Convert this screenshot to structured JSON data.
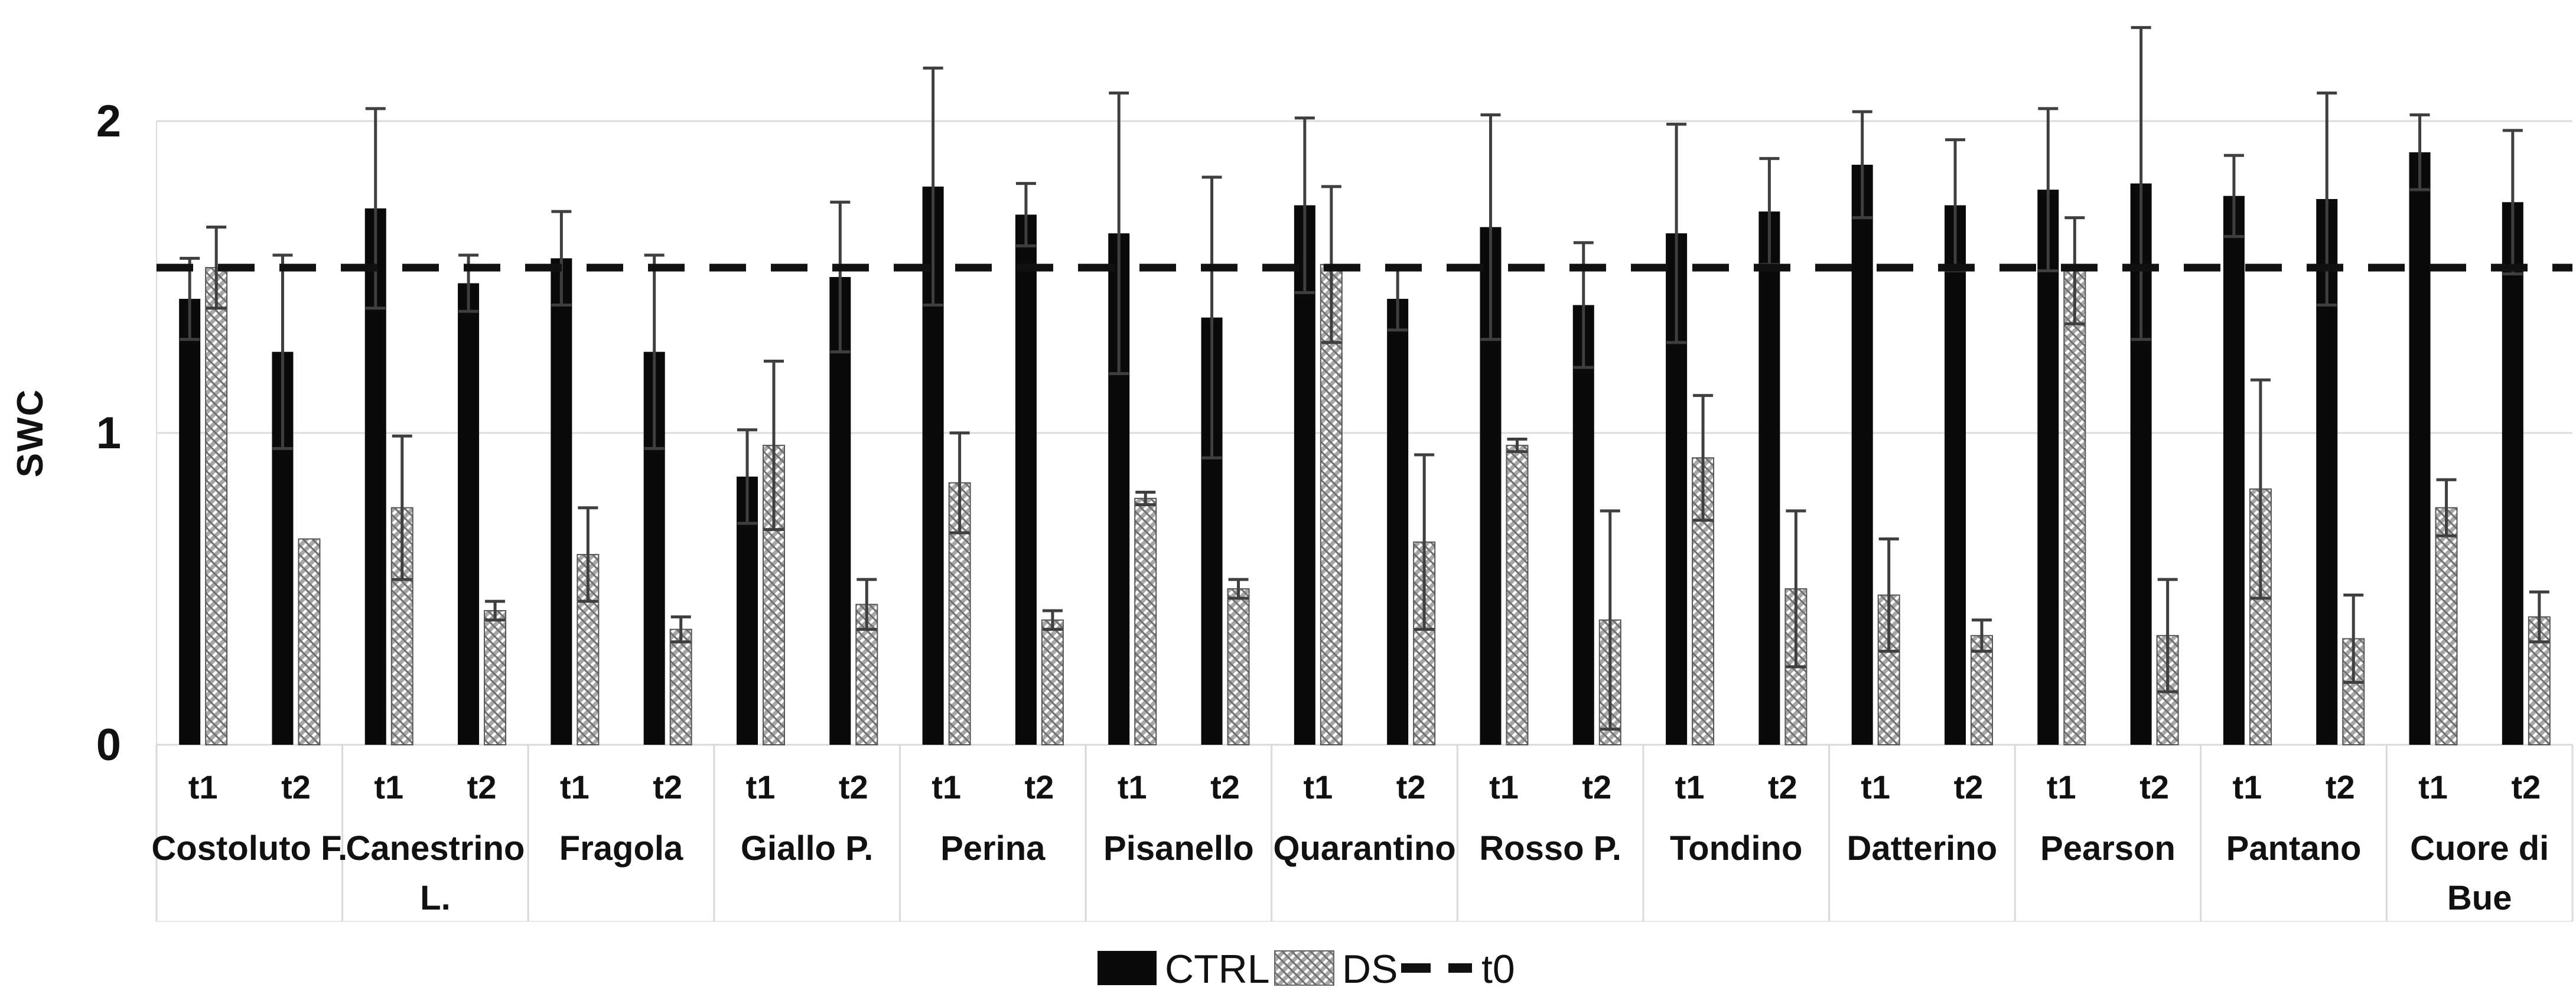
{
  "chart_data": {
    "type": "bar",
    "title": "",
    "ylabel": "SWC",
    "ylim": [
      0,
      2.4
    ],
    "yticks": [
      0,
      1,
      2
    ],
    "grid": "horizontal-light",
    "legend_position": "bottom-center",
    "sub_labels": [
      "t1",
      "t2"
    ],
    "t0_line": {
      "label": "t0",
      "value": 1.53
    },
    "legend": [
      {
        "label": "CTRL",
        "type": "solid"
      },
      {
        "label": "DS",
        "type": "hatch"
      },
      {
        "label": "t0",
        "type": "dash"
      }
    ],
    "colors": {
      "ctrl": "#0a0a0a",
      "ds_base": "#a8a8a8",
      "ds_hatch_light": "#ffffff",
      "ds_hatch_dark": "#6f6f6f",
      "grid": "#dcdcdc",
      "band": "#d9d9d9",
      "error": "#3f3f3f",
      "t0": "#111111"
    },
    "groups": [
      {
        "name": "Costoluto F.",
        "lines": [
          "Costoluto F."
        ],
        "t1": {
          "ctrl": 1.43,
          "ctrl_err": 0.13,
          "ds": 1.53,
          "ds_err": 0.13
        },
        "t2": {
          "ctrl": 1.26,
          "ctrl_err": 0.31,
          "ds": 0.66,
          "ds_err": 0
        }
      },
      {
        "name": "Canestrino L.",
        "lines": [
          "Canestrino",
          "L."
        ],
        "t1": {
          "ctrl": 1.72,
          "ctrl_err": 0.32,
          "ds": 0.76,
          "ds_err": 0.23
        },
        "t2": {
          "ctrl": 1.48,
          "ctrl_err": 0.09,
          "ds": 0.43,
          "ds_err": 0.03
        }
      },
      {
        "name": "Fragola",
        "lines": [
          "Fragola"
        ],
        "t1": {
          "ctrl": 1.56,
          "ctrl_err": 0.15,
          "ds": 0.61,
          "ds_err": 0.15
        },
        "t2": {
          "ctrl": 1.26,
          "ctrl_err": 0.31,
          "ds": 0.37,
          "ds_err": 0.04
        }
      },
      {
        "name": "Giallo P.",
        "lines": [
          "Giallo P."
        ],
        "t1": {
          "ctrl": 0.86,
          "ctrl_err": 0.15,
          "ds": 0.96,
          "ds_err": 0.27
        },
        "t2": {
          "ctrl": 1.5,
          "ctrl_err": 0.24,
          "ds": 0.45,
          "ds_err": 0.08
        }
      },
      {
        "name": "Perina",
        "lines": [
          "Perina"
        ],
        "t1": {
          "ctrl": 1.79,
          "ctrl_err": 0.38,
          "ds": 0.84,
          "ds_err": 0.16
        },
        "t2": {
          "ctrl": 1.7,
          "ctrl_err": 0.1,
          "ds": 0.4,
          "ds_err": 0.03
        }
      },
      {
        "name": "Pisanello",
        "lines": [
          "Pisanello"
        ],
        "t1": {
          "ctrl": 1.64,
          "ctrl_err": 0.45,
          "ds": 0.79,
          "ds_err": 0.02
        },
        "t2": {
          "ctrl": 1.37,
          "ctrl_err": 0.45,
          "ds": 0.5,
          "ds_err": 0.03
        }
      },
      {
        "name": "Quarantino",
        "lines": [
          "Quarantino"
        ],
        "t1": {
          "ctrl": 1.73,
          "ctrl_err": 0.28,
          "ds": 1.54,
          "ds_err": 0.25
        },
        "t2": {
          "ctrl": 1.43,
          "ctrl_err": 0.1,
          "ds": 0.65,
          "ds_err": 0.28
        }
      },
      {
        "name": "Rosso P.",
        "lines": [
          "Rosso P."
        ],
        "t1": {
          "ctrl": 1.66,
          "ctrl_err": 0.36,
          "ds": 0.96,
          "ds_err": 0.02
        },
        "t2": {
          "ctrl": 1.41,
          "ctrl_err": 0.2,
          "ds": 0.4,
          "ds_err": 0.35
        }
      },
      {
        "name": "Tondino",
        "lines": [
          "Tondino"
        ],
        "t1": {
          "ctrl": 1.64,
          "ctrl_err": 0.35,
          "ds": 0.92,
          "ds_err": 0.2
        },
        "t2": {
          "ctrl": 1.71,
          "ctrl_err": 0.17,
          "ds": 0.5,
          "ds_err": 0.25
        }
      },
      {
        "name": "Datterino",
        "lines": [
          "Datterino"
        ],
        "t1": {
          "ctrl": 1.86,
          "ctrl_err": 0.17,
          "ds": 0.48,
          "ds_err": 0.18
        },
        "t2": {
          "ctrl": 1.73,
          "ctrl_err": 0.21,
          "ds": 0.35,
          "ds_err": 0.05
        }
      },
      {
        "name": "Pearson",
        "lines": [
          "Pearson"
        ],
        "t1": {
          "ctrl": 1.78,
          "ctrl_err": 0.26,
          "ds": 1.52,
          "ds_err": 0.17
        },
        "t2": {
          "ctrl": 1.8,
          "ctrl_err": 0.5,
          "ds": 0.35,
          "ds_err": 0.18
        }
      },
      {
        "name": "Pantano",
        "lines": [
          "Pantano"
        ],
        "t1": {
          "ctrl": 1.76,
          "ctrl_err": 0.13,
          "ds": 0.82,
          "ds_err": 0.35
        },
        "t2": {
          "ctrl": 1.75,
          "ctrl_err": 0.34,
          "ds": 0.34,
          "ds_err": 0.14
        }
      },
      {
        "name": "Cuore di Bue",
        "lines": [
          "Cuore di",
          "Bue"
        ],
        "t1": {
          "ctrl": 1.9,
          "ctrl_err": 0.12,
          "ds": 0.76,
          "ds_err": 0.09
        },
        "t2": {
          "ctrl": 1.74,
          "ctrl_err": 0.23,
          "ds": 0.41,
          "ds_err": 0.08
        }
      }
    ]
  }
}
